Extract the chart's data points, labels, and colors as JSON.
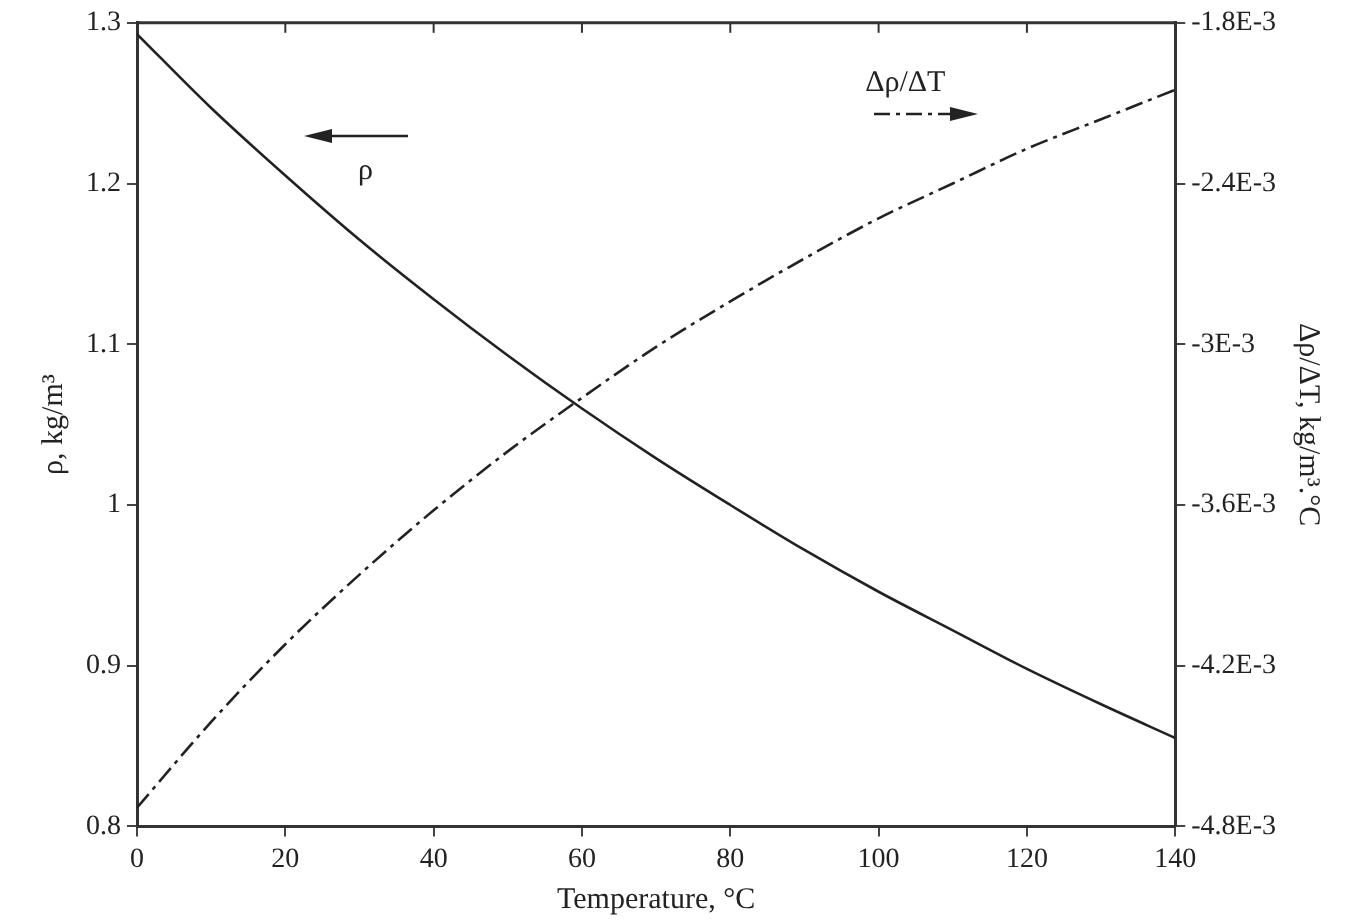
{
  "chart_data": {
    "type": "line",
    "xlabel": "Temperature, °C",
    "ylabel": "ρ, kg/m³",
    "y2label": "Δρ/ΔT, kg/m³.°C",
    "x": [
      0,
      10,
      20,
      30,
      40,
      50,
      60,
      70,
      80,
      90,
      100,
      110,
      120,
      130,
      140
    ],
    "series": [
      {
        "color": "#222222",
        "line_style": "solid",
        "values": [
          1.293,
          1.247,
          1.205,
          1.165,
          1.128,
          1.093,
          1.06,
          1.029,
          1.0,
          0.972,
          0.946,
          0.922,
          0.898,
          0.876,
          0.855
        ]
      },
      {
        "color": "#222222",
        "line_style": "dashed",
        "axis": "y2",
        "values": [
          -0.00473,
          -0.00441,
          -0.00412,
          -0.00386,
          -0.00362,
          -0.0034,
          -0.0032,
          -0.00301,
          -0.00284,
          -0.00268,
          -0.00253,
          -0.0024,
          -0.00227,
          -0.00216,
          -0.00205
        ]
      }
    ],
    "xlim": [
      0,
      140
    ],
    "xticks": [
      0,
      20,
      40,
      60,
      80,
      100,
      120,
      140
    ],
    "ylim": [
      0.8,
      1.3
    ],
    "yticks": [
      0.8,
      0.9,
      1,
      1.1,
      1.2,
      1.3
    ],
    "y2lim": [
      -0.0048,
      -0.0018
    ],
    "y2ticks": [
      {
        "value": -0.0048,
        "label": "-4.8E-3"
      },
      {
        "value": -0.0042,
        "label": "-4.2E-3"
      },
      {
        "value": -0.0036,
        "label": "-3.6E-3"
      },
      {
        "value": -0.003,
        "label": "-3E-3"
      },
      {
        "value": -0.0024,
        "label": "-2.4E-3"
      },
      {
        "value": -0.0018,
        "label": "-1.8E-3"
      }
    ],
    "annotations": [
      "ρ",
      "Δρ/ΔT"
    ],
    "grid": false,
    "legend": false,
    "marker": "none"
  }
}
